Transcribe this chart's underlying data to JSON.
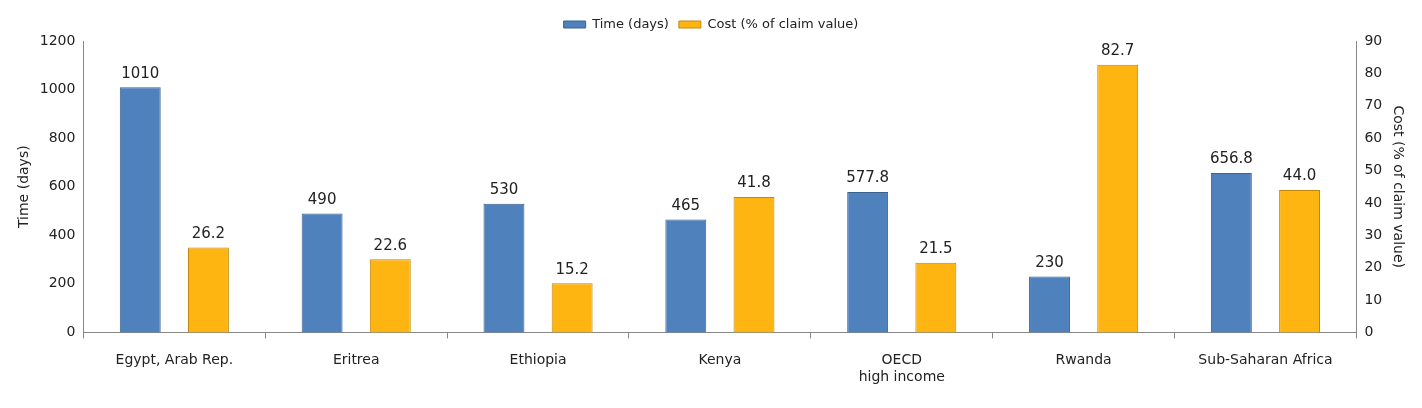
{
  "chart_data": {
    "type": "bar",
    "ylabel": "Time (days)",
    "y2label": "Cost (% of claim value)",
    "categories": [
      "Egypt, Arab Rep.",
      "Eritrea",
      "Ethiopia",
      "Kenya",
      "OECD\nhigh income",
      "Rwanda",
      "Sub-Saharan Africa"
    ],
    "series": [
      {
        "name": "Time (days)",
        "color": "#4f81bd",
        "values": [
          1010,
          490,
          530,
          465,
          577.8,
          230,
          656.8
        ],
        "value_labels": [
          "1010",
          "490",
          "530",
          "465",
          "577.8",
          "230",
          "656.8"
        ]
      },
      {
        "name": "Cost (% of claim value)",
        "color": "#ffb511",
        "axis": "y2",
        "values": [
          26.2,
          22.6,
          15.2,
          41.8,
          21.5,
          82.7,
          44.0
        ],
        "value_labels": [
          "26.2",
          "22.6",
          "15.2",
          "41.8",
          "21.5",
          "82.7",
          "44.0"
        ]
      }
    ],
    "ylim": [
      0,
      1200
    ],
    "yticks": [
      0,
      200,
      400,
      600,
      800,
      1000,
      1200
    ],
    "y2lim": [
      0,
      90
    ],
    "y2ticks": [
      0,
      10,
      20,
      30,
      40,
      50,
      60,
      70,
      80,
      90
    ],
    "legend": "top",
    "grid": false
  }
}
